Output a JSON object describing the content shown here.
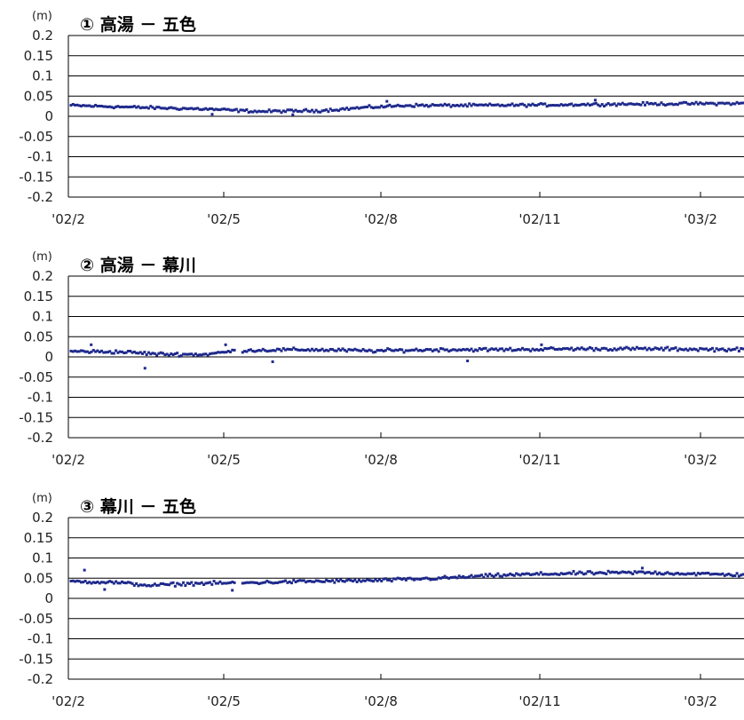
{
  "chart_data": [
    {
      "type": "scatter",
      "title": "① 高湯 － 五色",
      "unit": "(m)",
      "ylim": [
        -0.2,
        0.2
      ],
      "yticks": [
        "0.2",
        "0.15",
        "0.1",
        "0.05",
        "0",
        "-0.05",
        "-0.1",
        "-0.15",
        "-0.2"
      ],
      "xlim": [
        "2002-02-01",
        "2003-03-01"
      ],
      "xticks": [
        "'02/2",
        "'02/5",
        "'02/8",
        "'02/11",
        "'03/2"
      ],
      "grid": true,
      "marker_color": "#1f2a8c",
      "trend": [
        [
          0,
          0.027
        ],
        [
          0.1,
          0.022
        ],
        [
          0.2,
          0.018
        ],
        [
          0.28,
          0.012
        ],
        [
          0.37,
          0.014
        ],
        [
          0.44,
          0.022
        ],
        [
          0.5,
          0.027
        ],
        [
          0.6,
          0.027
        ],
        [
          0.7,
          0.028
        ],
        [
          0.8,
          0.03
        ],
        [
          0.9,
          0.031
        ],
        [
          1.0,
          0.032
        ]
      ],
      "noise": 0.005,
      "outliers": [
        [
          0.21,
          0.005
        ],
        [
          0.33,
          0.004
        ],
        [
          0.47,
          0.037
        ],
        [
          0.78,
          0.04
        ]
      ]
    },
    {
      "type": "scatter",
      "title": "② 高湯 － 幕川",
      "unit": "(m)",
      "ylim": [
        -0.2,
        0.2
      ],
      "yticks": [
        "0.2",
        "0.15",
        "0.1",
        "0.05",
        "0",
        "-0.05",
        "-0.1",
        "-0.15",
        "-0.2"
      ],
      "xlim": [
        "2002-02-01",
        "2003-03-01"
      ],
      "xticks": [
        "'02/2",
        "'02/5",
        "'02/8",
        "'02/11",
        "'03/2"
      ],
      "grid": true,
      "marker_color": "#1f2a8c",
      "trend": [
        [
          0,
          0.014
        ],
        [
          0.08,
          0.012
        ],
        [
          0.13,
          0.007
        ],
        [
          0.2,
          0.006
        ],
        [
          0.25,
          0.016
        ],
        [
          0.35,
          0.018
        ],
        [
          0.45,
          0.015
        ],
        [
          0.55,
          0.018
        ],
        [
          0.65,
          0.018
        ],
        [
          0.75,
          0.02
        ],
        [
          0.85,
          0.02
        ],
        [
          1.0,
          0.018
        ]
      ],
      "noise": 0.006,
      "outliers": [
        [
          0.11,
          -0.028
        ],
        [
          0.03,
          0.03
        ],
        [
          0.3,
          -0.012
        ],
        [
          0.59,
          -0.01
        ],
        [
          0.7,
          0.03
        ],
        [
          0.23,
          0.03
        ]
      ]
    },
    {
      "type": "scatter",
      "title": "③ 幕川 － 五色",
      "unit": "(m)",
      "ylim": [
        -0.2,
        0.2
      ],
      "yticks": [
        "0.2",
        "0.15",
        "0.1",
        "0.05",
        "0",
        "-0.05",
        "-0.1",
        "-0.15",
        "-0.2"
      ],
      "xlim": [
        "2002-02-01",
        "2003-03-01"
      ],
      "xticks": [
        "'02/2",
        "'02/5",
        "'02/8",
        "'02/11",
        "'03/2"
      ],
      "grid": true,
      "marker_color": "#1f2a8c",
      "trend": [
        [
          0,
          0.042
        ],
        [
          0.06,
          0.04
        ],
        [
          0.12,
          0.032
        ],
        [
          0.18,
          0.037
        ],
        [
          0.25,
          0.038
        ],
        [
          0.35,
          0.042
        ],
        [
          0.45,
          0.044
        ],
        [
          0.55,
          0.05
        ],
        [
          0.65,
          0.058
        ],
        [
          0.75,
          0.062
        ],
        [
          0.85,
          0.064
        ],
        [
          1.0,
          0.058
        ]
      ],
      "noise": 0.006,
      "outliers": [
        [
          0.02,
          0.07
        ],
        [
          0.05,
          0.022
        ],
        [
          0.24,
          0.02
        ],
        [
          0.85,
          0.075
        ]
      ]
    }
  ]
}
